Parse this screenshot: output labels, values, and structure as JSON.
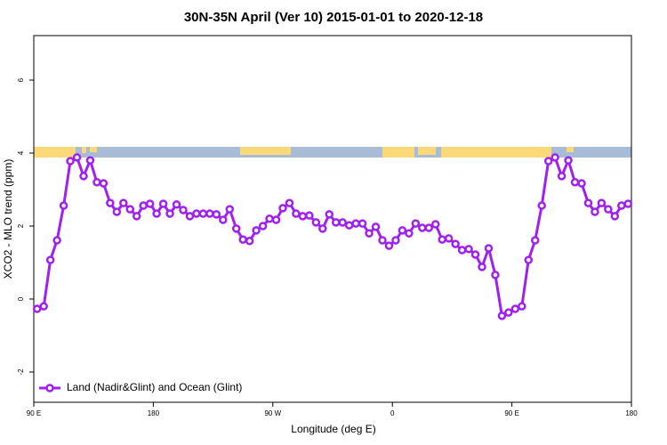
{
  "chart_data": {
    "type": "line",
    "title": "30N-35N April (Ver 10)   2015-01-01 to 2020-12-18",
    "xlabel": "Longitude (deg E)",
    "ylabel": "XCO2 - MLO trend (ppm)",
    "x": [
      92.5,
      97.5,
      102.5,
      107.5,
      112.5,
      117.5,
      122.5,
      127.5,
      132.5,
      137.5,
      142.5,
      147.5,
      152.5,
      157.5,
      162.5,
      167.5,
      172.5,
      177.5,
      182.5,
      187.5,
      192.5,
      197.5,
      202.5,
      207.5,
      212.5,
      217.5,
      222.5,
      227.5,
      232.5,
      237.5,
      242.5,
      247.5,
      252.5,
      257.5,
      262.5,
      267.5,
      272.5,
      277.5,
      282.5,
      287.5,
      292.5,
      297.5,
      302.5,
      307.5,
      312.5,
      317.5,
      322.5,
      327.5,
      332.5,
      337.5,
      342.5,
      347.5,
      352.5,
      357.5,
      362.5,
      367.5,
      372.5,
      377.5,
      382.5,
      387.5,
      392.5,
      397.5,
      402.5,
      407.5,
      412.5,
      417.5,
      422.5,
      427.5,
      432.5,
      437.5,
      442.5,
      447.5,
      452.5,
      457.5,
      462.5,
      467.5,
      472.5,
      477.5,
      482.5,
      487.5,
      492.5,
      497.5,
      502.5,
      507.5,
      512.5,
      517.5,
      522.5,
      527.5,
      532.5,
      537.5
    ],
    "series": [
      {
        "name": "Land (Nadir&Glint) and Ocean (Glint)",
        "color": "#a020f0",
        "values": [
          -0.27,
          -0.2,
          1.07,
          1.61,
          2.56,
          3.78,
          3.88,
          3.37,
          3.8,
          3.2,
          3.17,
          2.63,
          2.39,
          2.63,
          2.46,
          2.27,
          2.56,
          2.61,
          2.34,
          2.61,
          2.34,
          2.59,
          2.44,
          2.27,
          2.34,
          2.34,
          2.34,
          2.32,
          2.17,
          2.46,
          1.93,
          1.63,
          1.59,
          1.88,
          2.0,
          2.2,
          2.17,
          2.49,
          2.63,
          2.34,
          2.27,
          2.29,
          2.1,
          1.93,
          2.32,
          2.1,
          2.1,
          2.02,
          2.07,
          2.07,
          1.8,
          1.98,
          1.61,
          1.46,
          1.61,
          1.88,
          1.8,
          2.07,
          1.95,
          1.95,
          2.05,
          1.63,
          1.66,
          1.51,
          1.34,
          1.37,
          1.22,
          0.88,
          1.39,
          0.66,
          -0.46,
          -0.37,
          -0.27,
          -0.2,
          1.07,
          1.61,
          2.56,
          3.78,
          3.88,
          3.37,
          3.8,
          3.2,
          3.17,
          2.63,
          2.39,
          2.63,
          2.46,
          2.27,
          2.56,
          2.61
        ]
      }
    ],
    "xlim": [
      90,
      540
    ],
    "xticks": [
      {
        "value": 90,
        "label": "90 E"
      },
      {
        "value": 180,
        "label": "180"
      },
      {
        "value": 270,
        "label": "90 W"
      },
      {
        "value": 360,
        "label": "0"
      },
      {
        "value": 450,
        "label": "90 E"
      },
      {
        "value": 540,
        "label": "180"
      }
    ],
    "ylim": [
      -2.83,
      7.22
    ],
    "yticks": [
      -2,
      0,
      2,
      4,
      6
    ],
    "legend": "bottom-left"
  }
}
